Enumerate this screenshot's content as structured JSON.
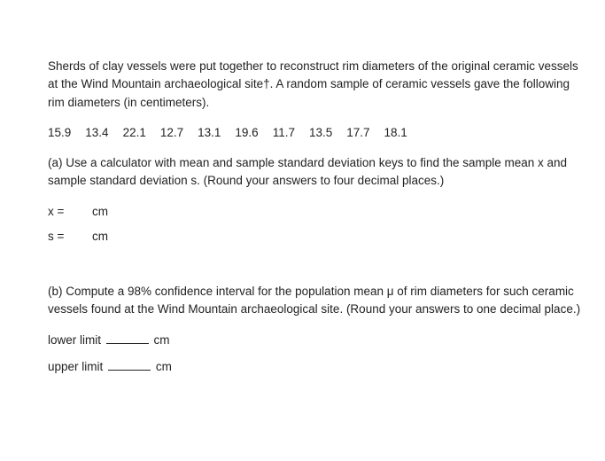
{
  "intro": "Sherds of clay vessels were put together to reconstruct rim diameters of the original ceramic vessels at the Wind Mountain archaeological site†. A random sample of ceramic vessels gave the following rim diameters (in centimeters).",
  "data_values": [
    "15.9",
    "13.4",
    "22.1",
    "12.7",
    "13.1",
    "19.6",
    "11.7",
    "13.5",
    "17.7",
    "18.1"
  ],
  "part_a": "(a) Use a calculator with mean and sample standard deviation keys to find the sample mean x and sample standard deviation s. (Round your answers to four decimal places.)",
  "x_label": "x =",
  "s_label": "s =",
  "unit_cm": "cm",
  "part_b": "(b) Compute a 98% confidence interval for the population mean μ of rim diameters for such ceramic vessels found at the Wind Mountain archaeological site. (Round your answers to one decimal place.)",
  "lower_limit_label": "lower limit",
  "upper_limit_label": "upper limit"
}
